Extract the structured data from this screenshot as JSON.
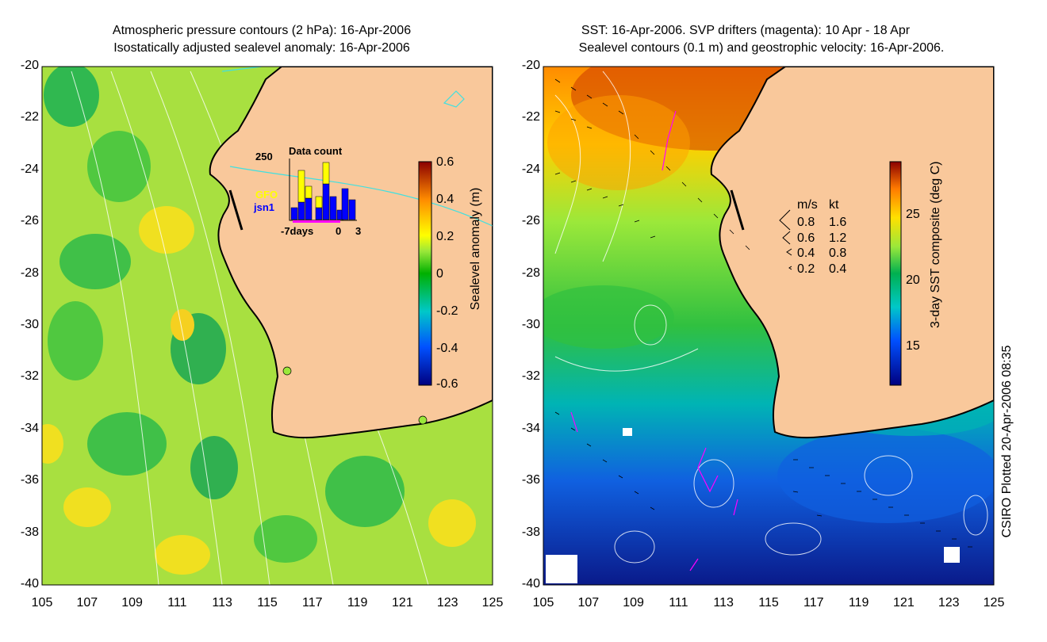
{
  "left_panel": {
    "title_line1": "Atmospheric pressure contours (2 hPa): 16-Apr-2006",
    "title_line2": "Isostatically adjusted sealevel anomaly: 16-Apr-2006",
    "colorbar": {
      "label": "Sealevel anomaly (m)",
      "ticks": [
        "0.6",
        "0.4",
        "0.2",
        "0",
        "-0.2",
        "-0.4",
        "-0.6"
      ],
      "range": [
        -0.6,
        0.6
      ]
    },
    "inset": {
      "title": "Data count",
      "ymax_label": "250",
      "xlabel_left": "-7days",
      "xlabel_zero": "0",
      "xlabel_right": "3",
      "legend": [
        "GFO",
        "jsn1"
      ],
      "legend_colors": [
        "#ffff00",
        "#0000ff"
      ]
    }
  },
  "right_panel": {
    "title_line1": "SST: 16-Apr-2006. SVP drifters (magenta): 10 Apr - 18 Apr",
    "title_line2": "Sealevel contours (0.1 m) and geostrophic velocity: 16-Apr-2006.",
    "colorbar": {
      "label": "3-day SST composite (deg C)",
      "ticks": [
        "25",
        "20",
        "15"
      ],
      "range": [
        12,
        29
      ]
    },
    "velocity_legend": {
      "header_ms": "m/s",
      "header_kt": "kt",
      "rows": [
        {
          "ms": "0.8",
          "kt": "1.6"
        },
        {
          "ms": "0.6",
          "kt": "1.2"
        },
        {
          "ms": "0.4",
          "kt": "0.8"
        },
        {
          "ms": "0.2",
          "kt": "0.4"
        }
      ]
    }
  },
  "axes": {
    "lat_ticks": [
      "-20",
      "-22",
      "-24",
      "-26",
      "-28",
      "-30",
      "-32",
      "-34",
      "-36",
      "-38",
      "-40"
    ],
    "lon_ticks": [
      "105",
      "107",
      "109",
      "111",
      "113",
      "115",
      "117",
      "119",
      "121",
      "123",
      "125"
    ],
    "lat_range": [
      -40,
      -20
    ],
    "lon_range": [
      105,
      125
    ]
  },
  "credit": "CSIRO Plotted 20-Apr-2006 08:35",
  "colors": {
    "land": "#f9c89b",
    "ocean_green": "#9be83a",
    "drifter": "#ff00ff",
    "coastline": "#000000"
  }
}
